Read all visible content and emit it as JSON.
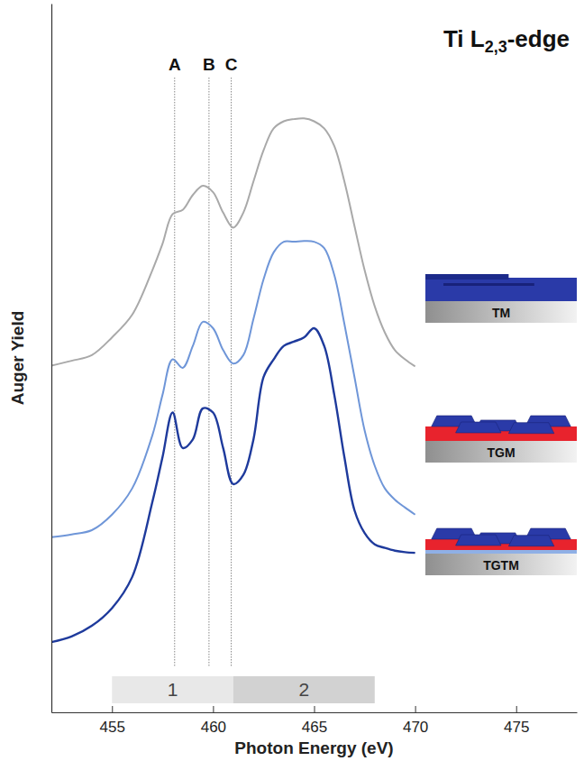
{
  "chart_data": {
    "type": "line",
    "title": "Ti L2,3-edge",
    "x_label": "Photon Energy (eV)",
    "y_label": "Auger Yield",
    "x": [
      452,
      453,
      454,
      455,
      456,
      457,
      457.5,
      458,
      458.5,
      459,
      459.5,
      460,
      460.5,
      461,
      461.5,
      462,
      462.5,
      463,
      463.5,
      464,
      464.5,
      465,
      465.5,
      466,
      466.5,
      467,
      467.5,
      468,
      468.5,
      469,
      469.5,
      470
    ],
    "series": [
      {
        "name": "TM",
        "color": "#a9a9a9",
        "values": [
          48.9,
          49.6,
          50.4,
          52.9,
          56.1,
          62.4,
          66.1,
          70.3,
          70.9,
          73.0,
          74.3,
          73.4,
          70.5,
          68.4,
          70.5,
          74.9,
          79.3,
          82.4,
          83.4,
          83.7,
          83.8,
          83.4,
          82.4,
          79.9,
          74.9,
          68.6,
          62.4,
          57.3,
          53.6,
          51.1,
          49.8,
          48.8
        ]
      },
      {
        "name": "TGM",
        "color": "#6f96d8",
        "values": [
          24.7,
          25.1,
          25.7,
          27.9,
          31.6,
          39.1,
          44.8,
          49.8,
          48.6,
          51.7,
          55.1,
          54.2,
          51.1,
          49.2,
          50.4,
          55.5,
          61.1,
          64.9,
          66.4,
          66.4,
          66.5,
          66.4,
          65.5,
          61.7,
          54.8,
          47.3,
          39.8,
          34.8,
          31.6,
          30.0,
          28.9,
          27.9
        ]
      },
      {
        "name": "TGTM",
        "color": "#1e3a9c",
        "values": [
          9.9,
          10.7,
          12.2,
          14.7,
          19.1,
          29.7,
          36.0,
          42.3,
          37.3,
          38.5,
          42.9,
          42.3,
          37.3,
          32.2,
          33.5,
          38.5,
          47.3,
          49.8,
          51.7,
          52.3,
          52.9,
          54.2,
          51.7,
          44.8,
          36.0,
          28.5,
          25.3,
          23.7,
          23.2,
          22.8,
          22.6,
          22.5
        ]
      }
    ],
    "markers": [
      {
        "label": "A",
        "x": 458.1
      },
      {
        "label": "B",
        "x": 459.8
      },
      {
        "label": "C",
        "x": 460.9
      }
    ],
    "regions": [
      {
        "label": "1",
        "x0": 455,
        "x1": 461
      },
      {
        "label": "2",
        "x0": 461,
        "x1": 468
      }
    ],
    "xlim": [
      452,
      478
    ],
    "xticks": [
      455,
      460,
      465,
      470,
      475
    ],
    "ylim": [
      0,
      100
    ],
    "yticks": [],
    "tick_labels": "x",
    "grid": false
  }
}
